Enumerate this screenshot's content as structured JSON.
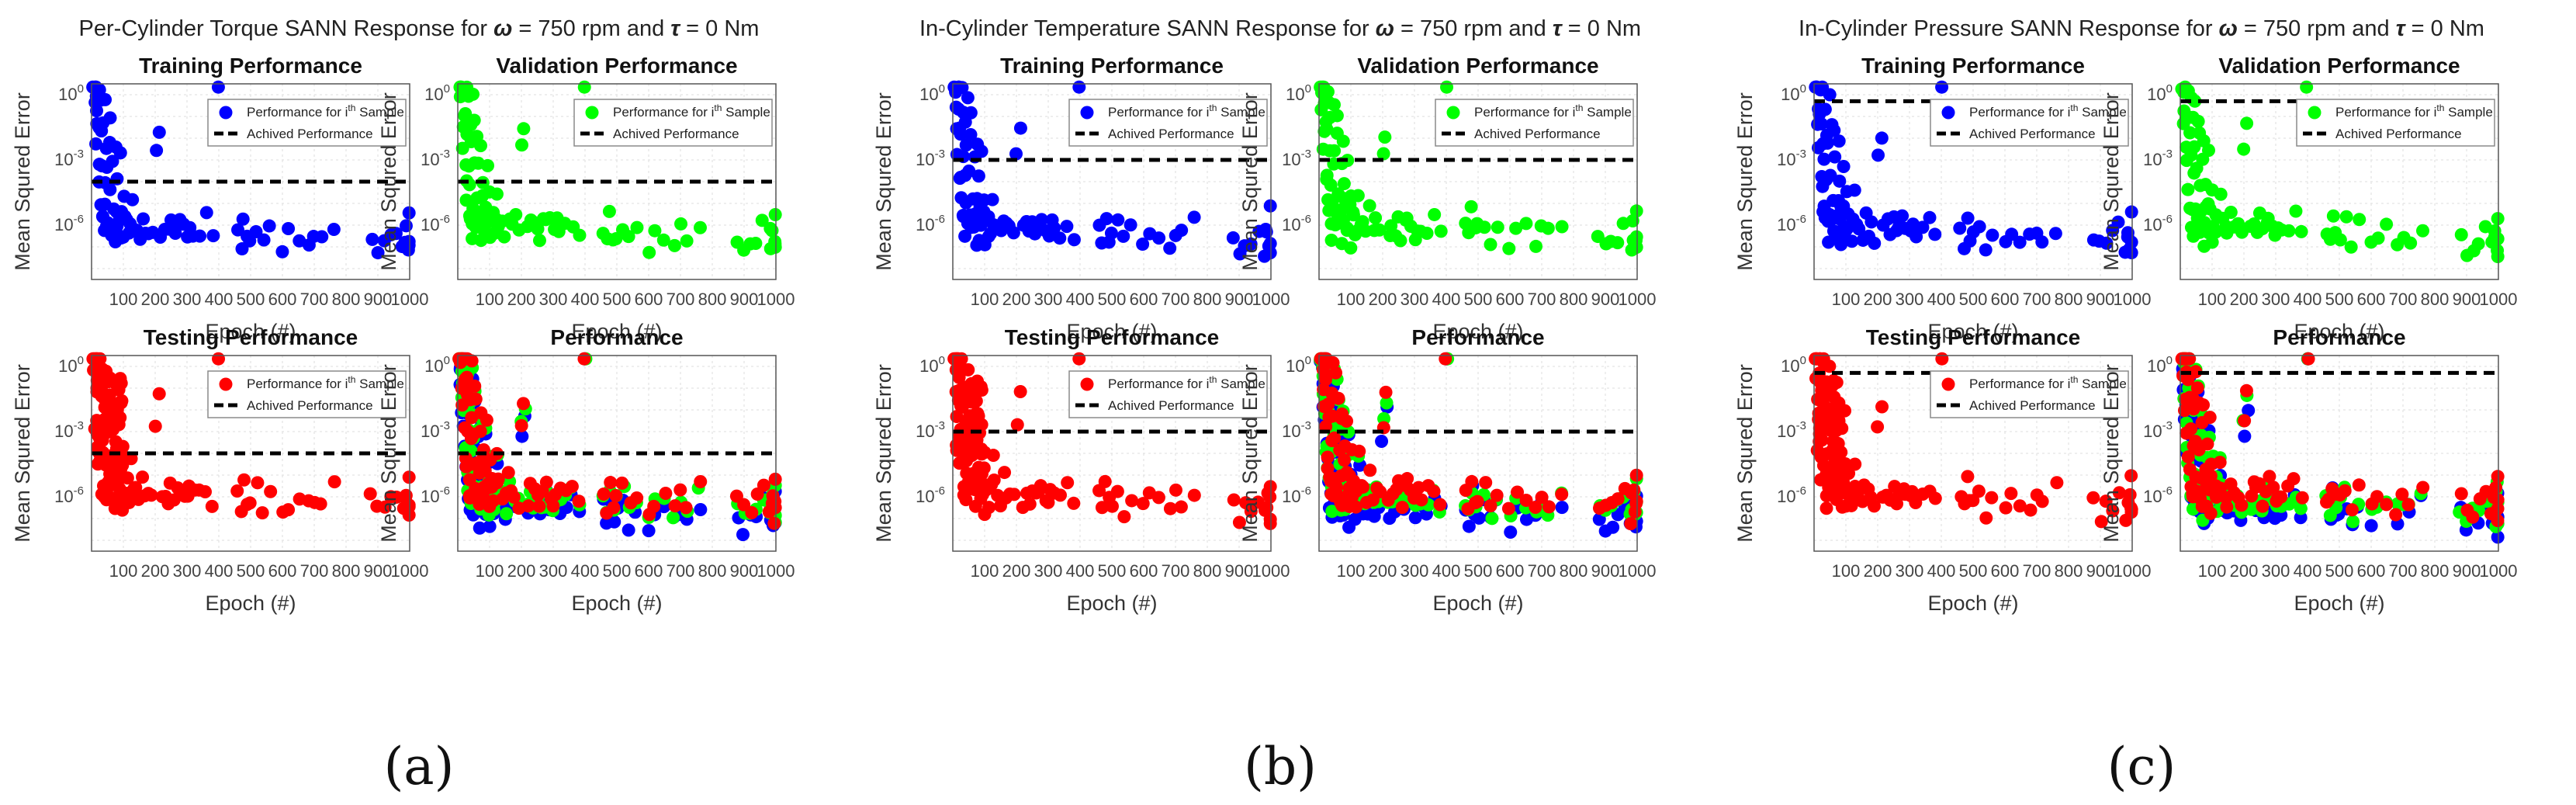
{
  "chart_data": [
    {
      "panel": "(a)",
      "title_prefix": "Per-Cylinder Torque SANN Response for",
      "condition_omega": "ω",
      "condition_mid": " = 750 rpm and ",
      "condition_tau": "τ",
      "condition_end": " = 0 Nm",
      "achieved_performance_log10": -4.0,
      "subplots": [
        {
          "type": "scatter",
          "title": "Training Performance",
          "series": [
            {
              "name": "Training",
              "color": "#0000ff"
            }
          ]
        },
        {
          "type": "scatter",
          "title": "Validation Performance",
          "series": [
            {
              "name": "Validation",
              "color": "#00ff00"
            }
          ]
        },
        {
          "type": "scatter",
          "title": "Testing Performance",
          "series": [
            {
              "name": "Testing",
              "color": "#ff0000"
            }
          ]
        },
        {
          "type": "scatter",
          "title": "Performance",
          "series": [
            {
              "name": "Training",
              "color": "#0000ff"
            },
            {
              "name": "Validation",
              "color": "#00ff00"
            },
            {
              "name": "Testing",
              "color": "#ff0000"
            }
          ]
        }
      ]
    },
    {
      "panel": "(b)",
      "title_prefix": "In-Cylinder Temperature SANN Response for",
      "condition_omega": "ω",
      "condition_mid": " = 750 rpm and ",
      "condition_tau": "τ",
      "condition_end": " = 0 Nm",
      "achieved_performance_log10": -3.0,
      "subplots": [
        {
          "type": "scatter",
          "title": "Training Performance",
          "series": [
            {
              "name": "Training",
              "color": "#0000ff"
            }
          ]
        },
        {
          "type": "scatter",
          "title": "Validation Performance",
          "series": [
            {
              "name": "Validation",
              "color": "#00ff00"
            }
          ]
        },
        {
          "type": "scatter",
          "title": "Testing Performance",
          "series": [
            {
              "name": "Testing",
              "color": "#ff0000"
            }
          ]
        },
        {
          "type": "scatter",
          "title": "Performance",
          "series": [
            {
              "name": "Training",
              "color": "#0000ff"
            },
            {
              "name": "Validation",
              "color": "#00ff00"
            },
            {
              "name": "Testing",
              "color": "#ff0000"
            }
          ]
        }
      ]
    },
    {
      "panel": "(c)",
      "title_prefix": "In-Cylinder Pressure SANN Response for",
      "condition_omega": "ω",
      "condition_mid": " = 750 rpm and ",
      "condition_tau": "τ",
      "condition_end": " = 0 Nm",
      "achieved_performance_log10": -0.3,
      "subplots": [
        {
          "type": "scatter",
          "title": "Training Performance",
          "series": [
            {
              "name": "Training",
              "color": "#0000ff"
            }
          ]
        },
        {
          "type": "scatter",
          "title": "Validation Performance",
          "series": [
            {
              "name": "Validation",
              "color": "#00ff00"
            }
          ]
        },
        {
          "type": "scatter",
          "title": "Testing Performance",
          "series": [
            {
              "name": "Testing",
              "color": "#ff0000"
            }
          ]
        },
        {
          "type": "scatter",
          "title": "Performance",
          "series": [
            {
              "name": "Training",
              "color": "#0000ff"
            },
            {
              "name": "Validation",
              "color": "#00ff00"
            },
            {
              "name": "Testing",
              "color": "#ff0000"
            }
          ]
        }
      ]
    }
  ],
  "axes": {
    "xlabel": "Epoch (#)",
    "ylabel": "Mean Squred Error",
    "xlim": [
      0,
      1000
    ],
    "ylim_log10": [
      -8.5,
      0.5
    ],
    "xticks": [
      100,
      200,
      300,
      400,
      500,
      600,
      700,
      800,
      900,
      1000
    ],
    "ytick_exponents": [
      0,
      -3,
      -6
    ],
    "ytick_base": "10"
  },
  "legend": {
    "sample_prefix": "Performance for i",
    "sample_sup": "th",
    "sample_suffix": " Sample",
    "achieved": "Achived Performance"
  },
  "colors": {
    "training": "#0000ff",
    "validation": "#00ff00",
    "testing": "#ff0000",
    "achieved": "#000000"
  },
  "base_sample": {
    "epoch": [
      5,
      8,
      10,
      12,
      14,
      15,
      16,
      18,
      20,
      22,
      24,
      25,
      26,
      28,
      30,
      32,
      34,
      35,
      36,
      38,
      40,
      42,
      44,
      45,
      46,
      48,
      50,
      52,
      55,
      58,
      60,
      62,
      65,
      68,
      70,
      72,
      75,
      78,
      80,
      82,
      85,
      88,
      90,
      92,
      95,
      98,
      100,
      105,
      110,
      115,
      120,
      125,
      130,
      140,
      150,
      160,
      170,
      180,
      190,
      200,
      210,
      220,
      230,
      240,
      250,
      260,
      270,
      280,
      290,
      300,
      310,
      320,
      340,
      360,
      380,
      400,
      460,
      470,
      480,
      490,
      500,
      520,
      540,
      560,
      600,
      620,
      650,
      680,
      700,
      720,
      760,
      880,
      900,
      920,
      940,
      960,
      980,
      985,
      990,
      995,
      1000,
      1000,
      1000
    ],
    "log10_mse": [
      0.3,
      0.5,
      -0.5,
      0.2,
      -1.5,
      0.4,
      -2.5,
      -0.8,
      0.3,
      -3.5,
      -1.2,
      -4.2,
      0.4,
      -2,
      -5,
      -0.5,
      -3,
      -5.5,
      -6,
      -1.5,
      -4,
      -6.5,
      -2.5,
      -5.2,
      -0.3,
      -6.2,
      -3.5,
      -5.8,
      -1,
      -6,
      -2,
      -4.5,
      -6.3,
      -3,
      -5.5,
      -6.8,
      -2.5,
      -5,
      -6,
      -4,
      -6.5,
      -5.5,
      -3,
      -6.2,
      -5.5,
      -6.8,
      -4.5,
      -6,
      -5.5,
      -6.5,
      -6,
      -4.5,
      -5.8,
      -6.2,
      -6.5,
      -5.5,
      -6.3,
      -6,
      -6.5,
      -2.8,
      -1.8,
      -6.4,
      -6,
      -6.3,
      -5.9,
      -6.5,
      -6.2,
      -5.8,
      -6.1,
      -6.4,
      -6,
      -6.3,
      -6.2,
      -5.8,
      -6.5,
      0.6,
      -6.2,
      -6.8,
      -5.6,
      -6.6,
      -6.4,
      -6,
      -6.9,
      -6.2,
      -7.0,
      -6.5,
      -6.4,
      -6.8,
      -6.3,
      -6.6,
      -6.0,
      -6.5,
      -7.1,
      -6.9,
      -6.6,
      -6.2,
      -7.2,
      -6.5,
      -6.0,
      -7.3,
      -5.5,
      -6.7,
      -7.0
    ]
  }
}
